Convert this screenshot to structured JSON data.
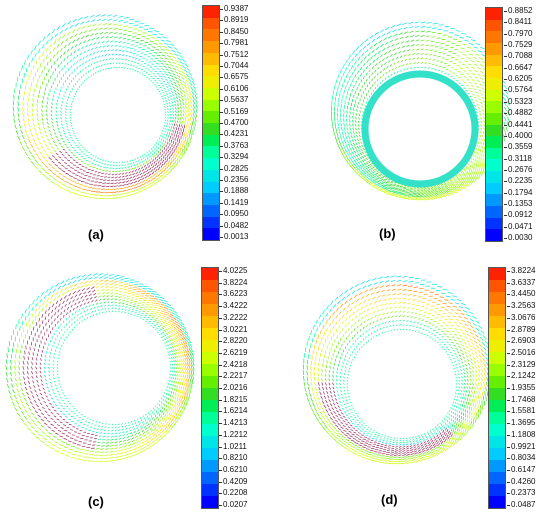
{
  "figure": {
    "panels": [
      {
        "id": "a",
        "label": "(a)",
        "ticks": [
          "0.9387",
          "0.8919",
          "0.8450",
          "0.7981",
          "0.7512",
          "0.7044",
          "0.6575",
          "0.6106",
          "0.5637",
          "0.5169",
          "0.4700",
          "0.4231",
          "0.3763",
          "0.3294",
          "0.2825",
          "0.2356",
          "0.1888",
          "0.1419",
          "0.0950",
          "0.0482",
          "0.0013"
        ],
        "core": "left"
      },
      {
        "id": "b",
        "label": "(b)",
        "ticks": [
          "0.8852",
          "0.8411",
          "0.7970",
          "0.7529",
          "0.7088",
          "0.6647",
          "0.6205",
          "0.5764",
          "0.5323",
          "0.4882",
          "0.4441",
          "0.4000",
          "0.3559",
          "0.3118",
          "0.2676",
          "0.2235",
          "0.1794",
          "0.1353",
          "0.0912",
          "0.0471",
          "0.0030"
        ],
        "core": "bottom"
      },
      {
        "id": "c",
        "label": "(c)",
        "ticks": [
          "4.0225",
          "3.8224",
          "3.6223",
          "3.4222",
          "3.2222",
          "3.0221",
          "2.8220",
          "2.6219",
          "2.4218",
          "2.2217",
          "2.0216",
          "1.8215",
          "1.6214",
          "1.4213",
          "1.2212",
          "1.0211",
          "0.8210",
          "0.6210",
          "0.4209",
          "0.2208",
          "0.0207"
        ],
        "core": "left"
      },
      {
        "id": "d",
        "label": "(d)",
        "ticks": [
          "3.8224",
          "3.6337",
          "3.4450",
          "3.2563",
          "3.0676",
          "2.8789",
          "2.6903",
          "2.5016",
          "2.3129",
          "2.1242",
          "1.9355",
          "1.7468",
          "1.5581",
          "1.3695",
          "1.1808",
          "0.9921",
          "0.8034",
          "0.6147",
          "0.4260",
          "0.2373",
          "0.0487"
        ],
        "core": "bottom-left"
      }
    ],
    "colormap": [
      "#0000ff",
      "#0033ff",
      "#0066ff",
      "#0099ff",
      "#00ccff",
      "#00e5e5",
      "#00ffcc",
      "#00ff99",
      "#00ee55",
      "#33dd22",
      "#66ee00",
      "#99ff00",
      "#ccff00",
      "#eeee00",
      "#ffdd00",
      "#ffbb00",
      "#ff9900",
      "#ff7700",
      "#ff5500",
      "#ff2200"
    ]
  }
}
